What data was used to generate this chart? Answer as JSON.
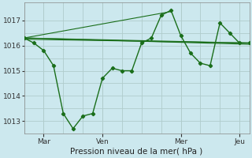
{
  "xlabel": "Pression niveau de la mer( hPa )",
  "bg_color": "#cce8ee",
  "grid_color": "#b0cccc",
  "line_color": "#1a6e1a",
  "yticks": [
    1013,
    1014,
    1015,
    1016,
    1017
  ],
  "ylim": [
    1012.5,
    1017.7
  ],
  "xlim": [
    0,
    23
  ],
  "xtick_positions": [
    2,
    8,
    16,
    22
  ],
  "xtick_labels": [
    "Mar",
    "Ven",
    "Mer",
    "Jeu"
  ],
  "main_series": {
    "x": [
      0,
      1,
      2,
      3,
      4,
      5,
      6,
      7,
      8,
      9,
      10,
      11,
      12,
      13,
      14,
      15,
      16,
      17,
      18,
      19,
      20,
      21,
      22,
      23
    ],
    "y": [
      1016.3,
      1016.1,
      1015.8,
      1015.2,
      1013.3,
      1012.7,
      1013.2,
      1013.3,
      1014.7,
      1015.1,
      1015.0,
      1015.0,
      1016.1,
      1016.3,
      1017.2,
      1017.4,
      1016.4,
      1015.7,
      1015.3,
      1015.2,
      1016.9,
      1016.5,
      1016.1,
      1016.1
    ]
  },
  "flat_lines": [
    {
      "x": [
        0,
        23
      ],
      "y": [
        1016.25,
        1016.1
      ]
    },
    {
      "x": [
        0,
        23
      ],
      "y": [
        1016.3,
        1016.1
      ]
    },
    {
      "x": [
        0,
        23
      ],
      "y": [
        1016.3,
        1016.05
      ]
    },
    {
      "x": [
        0,
        15
      ],
      "y": [
        1016.3,
        1017.35
      ]
    }
  ]
}
